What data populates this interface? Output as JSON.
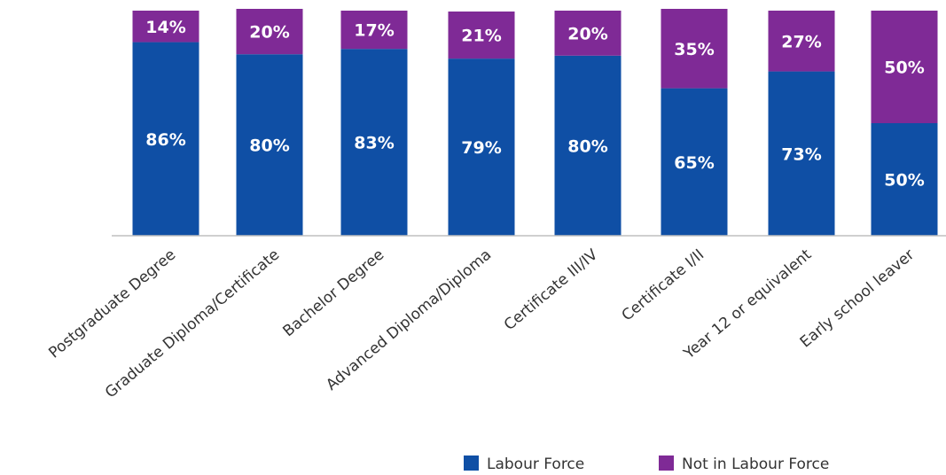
{
  "chart_data": {
    "type": "bar",
    "stacked": true,
    "normalized": true,
    "categories": [
      "Postgraduate Degree",
      "Graduate Diploma/Certificate",
      "Bachelor Degree",
      "Advanced Diploma/Diploma",
      "Certificate III/IV",
      "Certificate I/II",
      "Year 12 or equivalent",
      "Early school leaver"
    ],
    "series": [
      {
        "name": "Labour Force",
        "color": "#0f4fa5",
        "values": [
          86,
          80,
          83,
          79,
          80,
          65,
          73,
          50
        ],
        "labels": [
          "86%",
          "80%",
          "83%",
          "79%",
          "80%",
          "65%",
          "73%",
          "50%"
        ]
      },
      {
        "name": "Not in Labour Force",
        "color": "#7f2a96",
        "values": [
          14,
          20,
          17,
          21,
          20,
          35,
          27,
          50
        ],
        "labels": [
          "14%",
          "20%",
          "17%",
          "21%",
          "20%",
          "35%",
          "27%",
          "50%"
        ]
      }
    ],
    "title": "",
    "xlabel": "",
    "ylabel": "",
    "ylim": [
      0,
      100
    ],
    "grid": false,
    "legend_position": "bottom-right",
    "axis_color": "#bfbfbf"
  }
}
